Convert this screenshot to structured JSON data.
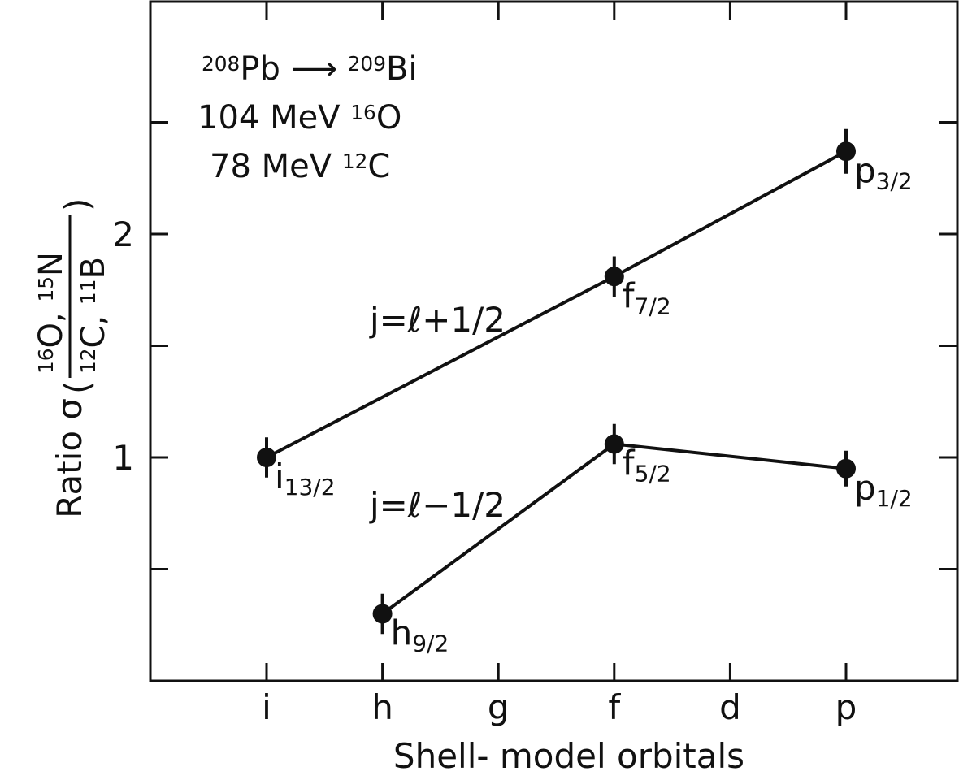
{
  "chart_data": {
    "type": "line",
    "xlabel": "Shell- model orbitals",
    "ylabel": {
      "text": "Ratio σ",
      "numerator": [
        {
          "sup": "16"
        },
        {
          "text": "O, "
        },
        {
          "sup": "15"
        },
        {
          "text": "N"
        }
      ],
      "denominator": [
        {
          "sup": "12"
        },
        {
          "text": "C, "
        },
        {
          "sup": "11"
        },
        {
          "text": "B"
        }
      ]
    },
    "annotations": [
      [
        {
          "sup": "208"
        },
        {
          "text": "Pb ⟶ "
        },
        {
          "sup": "209"
        },
        {
          "text": "Bi"
        }
      ],
      [
        {
          "text": "104 MeV "
        },
        {
          "sup": "16"
        },
        {
          "text": "O"
        }
      ],
      [
        {
          "text": "78 MeV "
        },
        {
          "sup": "12"
        },
        {
          "text": "C"
        }
      ]
    ],
    "categories": [
      "i",
      "h",
      "g",
      "f",
      "d",
      "p"
    ],
    "ylim": [
      0,
      3.04
    ],
    "yticks": [
      1,
      2
    ],
    "yminor_ticks": [
      0.5,
      1.5,
      2.5
    ],
    "color": "#111111",
    "series": [
      {
        "name": "j=ℓ+1/2",
        "x": [
          "i",
          "f",
          "p"
        ],
        "values": [
          1.0,
          1.81,
          2.37
        ],
        "errors": [
          0.09,
          0.09,
          0.1
        ],
        "point_labels": [
          {
            "text": "i",
            "sub": "13/2"
          },
          {
            "text": "f",
            "sub": "7/2"
          },
          {
            "text": "p",
            "sub": "3/2"
          }
        ]
      },
      {
        "name": "j=ℓ−1/2",
        "x": [
          "h",
          "f",
          "p"
        ],
        "values": [
          0.3,
          1.06,
          0.95
        ],
        "errors": [
          0.09,
          0.09,
          0.08
        ],
        "point_labels": [
          {
            "text": "h",
            "sub": "9/2"
          },
          {
            "text": "f",
            "sub": "5/2"
          },
          {
            "text": "p",
            "sub": "1/2"
          }
        ]
      }
    ]
  }
}
